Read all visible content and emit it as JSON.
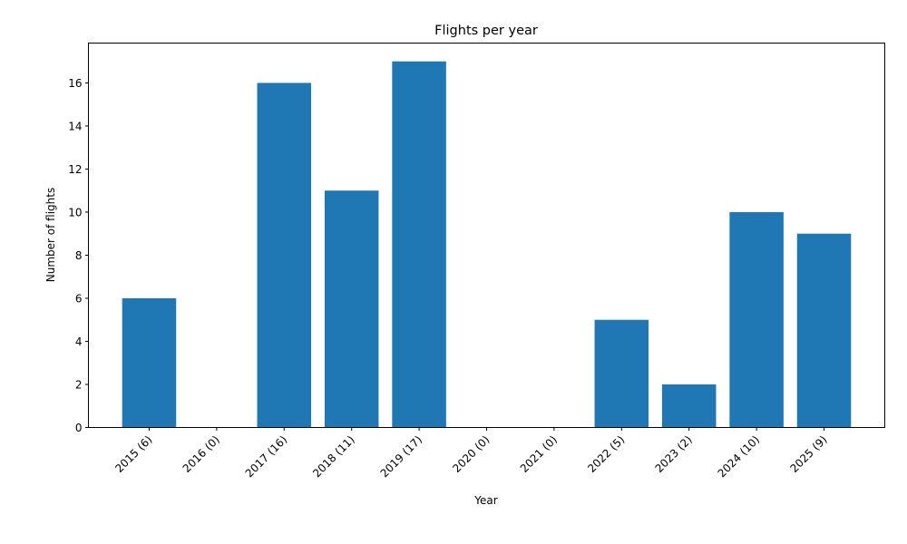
{
  "chart_data": {
    "type": "bar",
    "title": "Flights per year",
    "xlabel": "Year",
    "ylabel": "Number of flights",
    "categories": [
      "2015 (6)",
      "2016 (0)",
      "2017 (16)",
      "2018 (11)",
      "2019 (17)",
      "2020 (0)",
      "2021 (0)",
      "2022 (5)",
      "2023 (2)",
      "2024 (10)",
      "2025 (9)"
    ],
    "values": [
      6,
      0,
      16,
      11,
      17,
      0,
      0,
      5,
      2,
      10,
      9
    ],
    "ylim": [
      0,
      17.85
    ],
    "yticks": [
      0,
      2,
      4,
      6,
      8,
      10,
      12,
      14,
      16
    ],
    "grid": false,
    "legend": "none",
    "bar_color": "#1f77b4"
  }
}
